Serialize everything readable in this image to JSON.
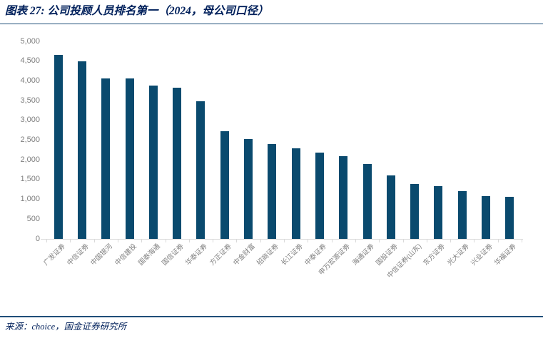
{
  "header": {
    "title": "图表 27: 公司投顾人员排名第一（2024，母公司口径）"
  },
  "footer": {
    "source": "来源：choice，国金证券研究所"
  },
  "colors": {
    "bar": "#0a4a6e",
    "accent_rule": "#1f4e79",
    "title_text": "#00205b",
    "axis_text": "#7f7f7f",
    "axis_line": "#d9d9d9"
  },
  "chart_data": {
    "type": "bar",
    "title": "公司投顾人员排名第一（2024，母公司口径）",
    "categories": [
      "广发证券",
      "中信证券",
      "中国银河",
      "中信建投",
      "国泰海通",
      "国信证券",
      "华泰证券",
      "方正证券",
      "中金财富",
      "招商证券",
      "长江证券",
      "中泰证券",
      "申万宏源证券",
      "海通证券",
      "国投证券",
      "中信证券(山东)",
      "东方证券",
      "光大证券",
      "兴业证券",
      "华福证券"
    ],
    "values": [
      4650,
      4500,
      4070,
      4060,
      3880,
      3820,
      3490,
      2720,
      2530,
      2400,
      2290,
      2180,
      2090,
      1890,
      1600,
      1390,
      1330,
      1210,
      1080,
      1060
    ],
    "xlabel": "",
    "ylabel": "",
    "ylim": [
      0,
      5000
    ],
    "ytick_step": 500,
    "ytick_labels": [
      "0",
      "500",
      "1,000",
      "1,500",
      "2,000",
      "2,500",
      "3,000",
      "3,500",
      "4,000",
      "4,500",
      "5,000"
    ],
    "grid": false,
    "legend": false,
    "bar_color": "#0a4a6e"
  }
}
